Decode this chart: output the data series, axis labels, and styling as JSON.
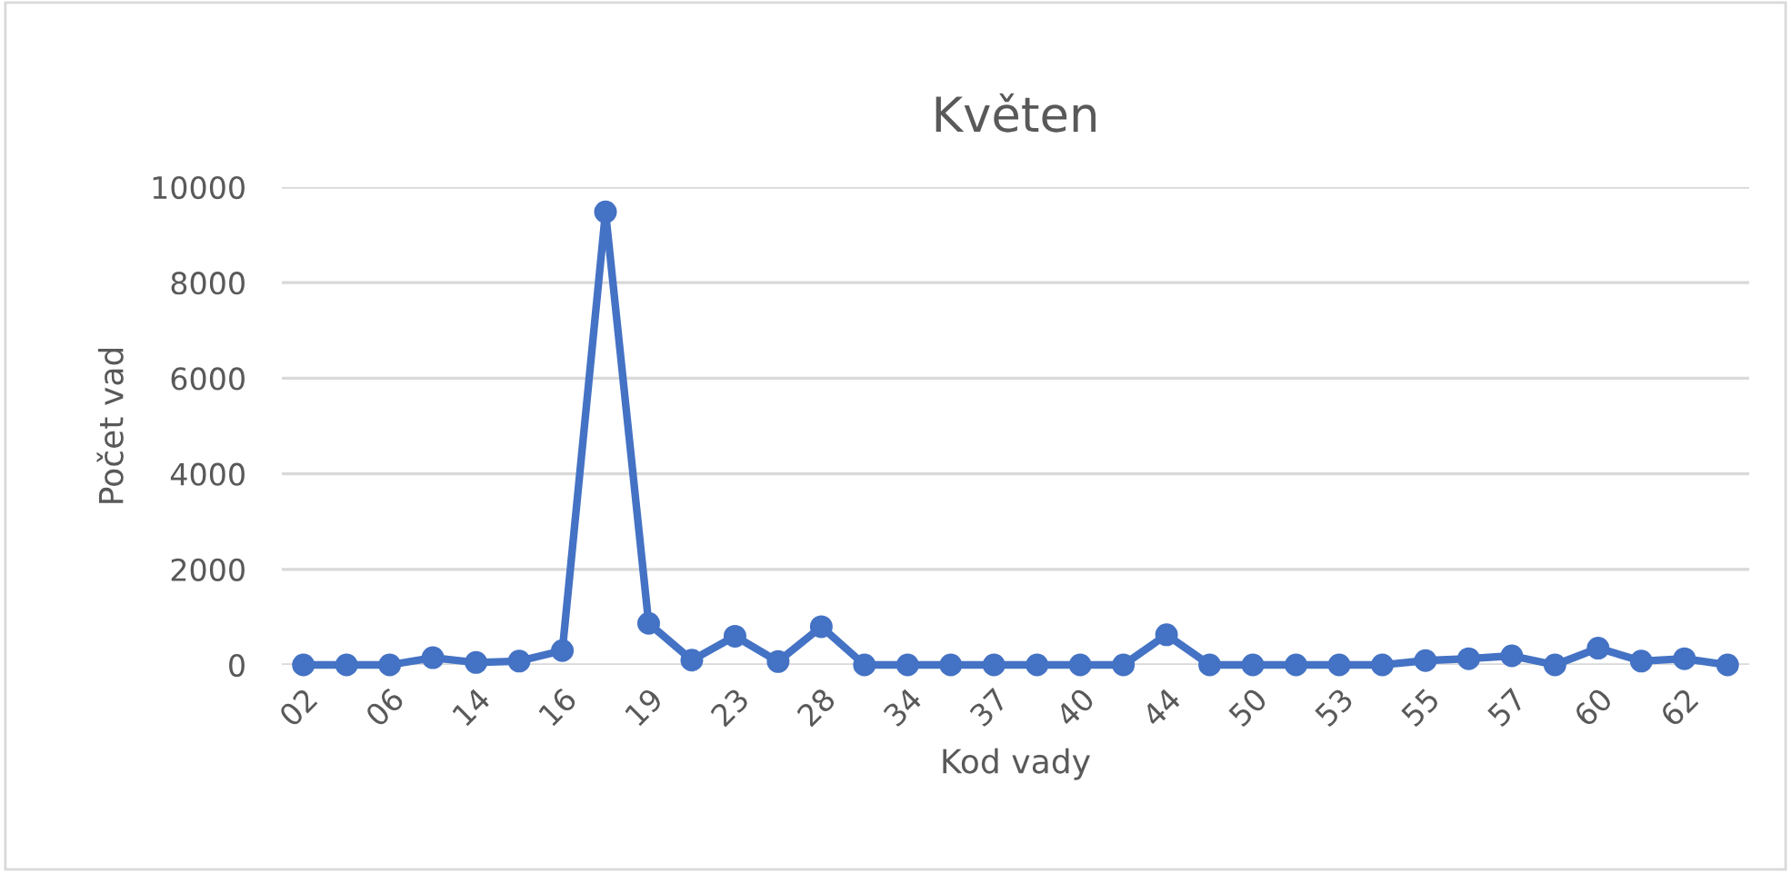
{
  "chart_data": {
    "type": "line",
    "title": "Květen",
    "xlabel": "Kod vady",
    "ylabel": "Počet vad",
    "categories": [
      "02",
      null,
      "06",
      null,
      "14",
      null,
      "16",
      null,
      "19",
      null,
      "23",
      null,
      "28",
      null,
      "34",
      null,
      "37",
      null,
      "40",
      null,
      "44",
      null,
      "50",
      null,
      "53",
      null,
      "55",
      null,
      "57",
      null,
      "60",
      null,
      "62",
      null
    ],
    "series": [
      {
        "color": "#4472c4",
        "values": [
          0,
          0,
          0,
          150,
          50,
          80,
          300,
          9480,
          870,
          100,
          600,
          70,
          800,
          0,
          0,
          0,
          0,
          0,
          0,
          0,
          630,
          0,
          0,
          0,
          0,
          0,
          90,
          130,
          190,
          0,
          350,
          80,
          130,
          0
        ]
      }
    ],
    "ylim": [
      0,
      10000
    ],
    "yticks": [
      0,
      2000,
      4000,
      6000,
      8000,
      10000
    ],
    "grid": "y",
    "marker": "circle",
    "line_style": "solid",
    "legend": false
  }
}
